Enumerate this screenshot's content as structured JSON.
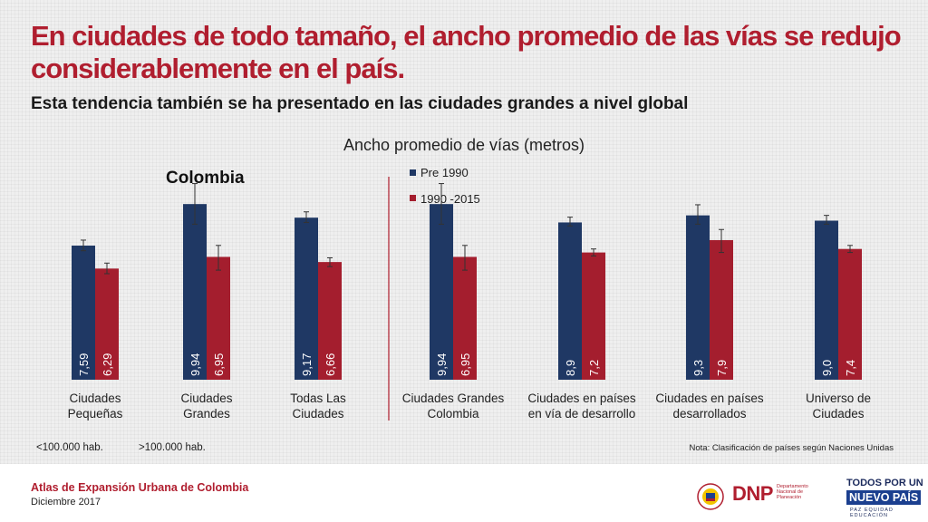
{
  "header": {
    "title": "En ciudades de todo tamaño, el ancho promedio de las vías se redujo considerablemente en el país.",
    "subtitle": "Esta tendencia también se ha presentado en las ciudades grandes a nivel global"
  },
  "chart_data": {
    "type": "bar",
    "title": "Ancho promedio de vías (metros)",
    "colors": {
      "pre": "#1f3864",
      "post": "#a41e2e"
    },
    "series_names": [
      "Pre 1990",
      "1990 -2015"
    ],
    "panels": [
      {
        "label": "Colombia",
        "categories": [
          {
            "line1": "Ciudades",
            "line2": "Pequeñas"
          },
          {
            "line1": "Ciudades",
            "line2": "Grandes"
          },
          {
            "line1": "Todas Las",
            "line2": "Ciudades"
          }
        ],
        "pre_values": [
          7.59,
          9.94,
          9.17
        ],
        "pre_labels": [
          "7,59",
          "9,94",
          "9,17"
        ],
        "post_values": [
          6.29,
          6.95,
          6.66
        ],
        "post_labels": [
          "6,29",
          "6,95",
          "6,66"
        ],
        "pre_err": [
          [
            7.3,
            7.9
          ],
          [
            8.8,
            11.1
          ],
          [
            8.9,
            9.5
          ]
        ],
        "post_err": [
          [
            6.0,
            6.6
          ],
          [
            6.2,
            7.6
          ],
          [
            6.4,
            6.9
          ]
        ]
      },
      {
        "categories": [
          {
            "line1": "Ciudades Grandes",
            "line2": "Colombia"
          },
          {
            "line1": "Ciudades en países",
            "line2": "en vía de desarrollo"
          },
          {
            "line1": "Ciudades en países",
            "line2": "desarrollados"
          },
          {
            "line1": "Universo de",
            "line2": "Ciudades"
          }
        ],
        "pre_values": [
          9.94,
          8.9,
          9.3,
          9.0
        ],
        "pre_labels": [
          "9,94",
          "8,9",
          "9,3",
          "9,0"
        ],
        "post_values": [
          6.95,
          7.2,
          7.9,
          7.4
        ],
        "post_labels": [
          "6,95",
          "7,2",
          "7,9",
          "7,4"
        ],
        "pre_err": [
          [
            8.8,
            11.1
          ],
          [
            8.7,
            9.2
          ],
          [
            8.8,
            9.9
          ],
          [
            8.8,
            9.3
          ]
        ],
        "post_err": [
          [
            6.2,
            7.6
          ],
          [
            7.0,
            7.4
          ],
          [
            7.2,
            8.5
          ],
          [
            7.2,
            7.6
          ]
        ]
      }
    ],
    "notes_below": [
      "<100.000 hab.",
      ">100.000 hab."
    ],
    "note": "Nota: Clasificación de países según Naciones Unidas"
  },
  "footer": {
    "title": "Atlas de Expansión Urbana de Colombia",
    "date": "Diciembre 2017",
    "dnp_text": "DNP",
    "dnp_sub": "Departamento Nacional de Planeación",
    "tpun_line1": "TODOS POR UN",
    "tpun_line2": "NUEVO PAÍS",
    "tpun_line3": "PAZ  EQUIDAD  EDUCACIÓN"
  }
}
